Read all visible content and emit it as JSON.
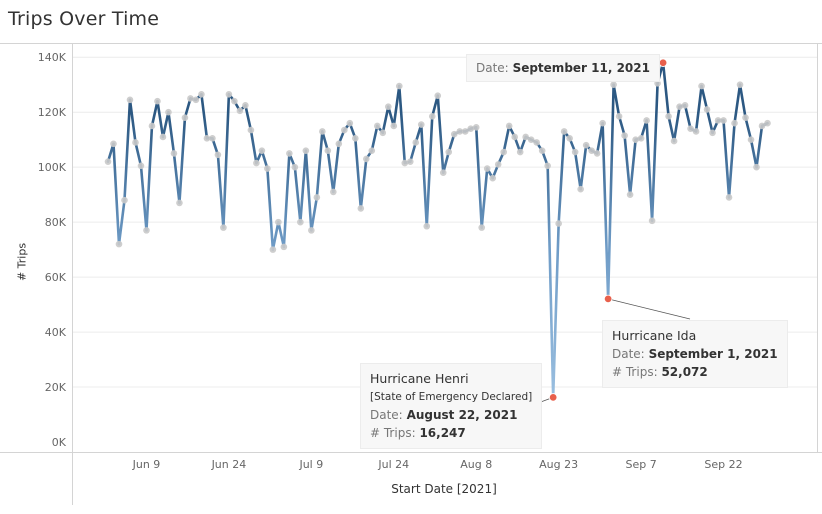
{
  "title": "Trips Over Time",
  "chart_data": {
    "type": "line",
    "xlabel": "Start Date [2021]",
    "ylabel": "# Trips",
    "x_start": "2021-06-02",
    "x_end": "2021-10-01",
    "x_ticks": [
      {
        "date": "2021-06-09",
        "label": "Jun 9"
      },
      {
        "date": "2021-06-24",
        "label": "Jun 24"
      },
      {
        "date": "2021-07-09",
        "label": "Jul 9"
      },
      {
        "date": "2021-07-24",
        "label": "Jul 24"
      },
      {
        "date": "2021-08-08",
        "label": "Aug 8"
      },
      {
        "date": "2021-08-23",
        "label": "Aug 23"
      },
      {
        "date": "2021-09-07",
        "label": "Sep 7"
      },
      {
        "date": "2021-09-22",
        "label": "Sep 22"
      }
    ],
    "ylim": [
      0,
      145000
    ],
    "y_ticks": [
      0,
      20000,
      40000,
      60000,
      80000,
      100000,
      120000,
      140000
    ],
    "y_tick_labels": [
      "0K",
      "20K",
      "40K",
      "60K",
      "80K",
      "100K",
      "120K",
      "140K"
    ],
    "grid": true,
    "series": [
      {
        "points": [
          [
            "2021-06-02",
            102000
          ],
          [
            "2021-06-03",
            108500
          ],
          [
            "2021-06-04",
            72000
          ],
          [
            "2021-06-05",
            88000
          ],
          [
            "2021-06-06",
            124500
          ],
          [
            "2021-06-07",
            109000
          ],
          [
            "2021-06-08",
            100500
          ],
          [
            "2021-06-09",
            77000
          ],
          [
            "2021-06-10",
            115000
          ],
          [
            "2021-06-11",
            124000
          ],
          [
            "2021-06-12",
            111000
          ],
          [
            "2021-06-13",
            120000
          ],
          [
            "2021-06-14",
            105000
          ],
          [
            "2021-06-15",
            87000
          ],
          [
            "2021-06-16",
            118000
          ],
          [
            "2021-06-17",
            125000
          ],
          [
            "2021-06-18",
            124500
          ],
          [
            "2021-06-19",
            126500
          ],
          [
            "2021-06-20",
            110500
          ],
          [
            "2021-06-21",
            110500
          ],
          [
            "2021-06-22",
            104500
          ],
          [
            "2021-06-23",
            78000
          ],
          [
            "2021-06-24",
            126500
          ],
          [
            "2021-06-25",
            124000
          ],
          [
            "2021-06-26",
            120500
          ],
          [
            "2021-06-27",
            122500
          ],
          [
            "2021-06-28",
            113500
          ],
          [
            "2021-06-29",
            101500
          ],
          [
            "2021-06-30",
            106000
          ],
          [
            "2021-07-01",
            99500
          ],
          [
            "2021-07-02",
            70000
          ],
          [
            "2021-07-03",
            80000
          ],
          [
            "2021-07-04",
            71000
          ],
          [
            "2021-07-05",
            105000
          ],
          [
            "2021-07-06",
            100000
          ],
          [
            "2021-07-07",
            80000
          ],
          [
            "2021-07-08",
            106000
          ],
          [
            "2021-07-09",
            77000
          ],
          [
            "2021-07-10",
            89000
          ],
          [
            "2021-07-11",
            113000
          ],
          [
            "2021-07-12",
            106000
          ],
          [
            "2021-07-13",
            91000
          ],
          [
            "2021-07-14",
            108500
          ],
          [
            "2021-07-15",
            113500
          ],
          [
            "2021-07-16",
            116000
          ],
          [
            "2021-07-17",
            110500
          ],
          [
            "2021-07-18",
            85000
          ],
          [
            "2021-07-19",
            103000
          ],
          [
            "2021-07-20",
            106000
          ],
          [
            "2021-07-21",
            115000
          ],
          [
            "2021-07-22",
            112500
          ],
          [
            "2021-07-23",
            122000
          ],
          [
            "2021-07-24",
            115000
          ],
          [
            "2021-07-25",
            129500
          ],
          [
            "2021-07-26",
            101500
          ],
          [
            "2021-07-27",
            102000
          ],
          [
            "2021-07-28",
            109000
          ],
          [
            "2021-07-29",
            115500
          ],
          [
            "2021-07-30",
            78500
          ],
          [
            "2021-07-31",
            118500
          ],
          [
            "2021-08-01",
            126000
          ],
          [
            "2021-08-02",
            98000
          ],
          [
            "2021-08-03",
            105500
          ],
          [
            "2021-08-04",
            112000
          ],
          [
            "2021-08-05",
            113000
          ],
          [
            "2021-08-06",
            113000
          ],
          [
            "2021-08-07",
            114000
          ],
          [
            "2021-08-08",
            114500
          ],
          [
            "2021-08-09",
            78000
          ],
          [
            "2021-08-10",
            99500
          ],
          [
            "2021-08-11",
            96000
          ],
          [
            "2021-08-12",
            101000
          ],
          [
            "2021-08-13",
            105500
          ],
          [
            "2021-08-14",
            115000
          ],
          [
            "2021-08-15",
            111000
          ],
          [
            "2021-08-16",
            105500
          ],
          [
            "2021-08-17",
            111000
          ],
          [
            "2021-08-18",
            110000
          ],
          [
            "2021-08-19",
            109000
          ],
          [
            "2021-08-20",
            106000
          ],
          [
            "2021-08-21",
            100500
          ],
          [
            "2021-08-22",
            16247
          ],
          [
            "2021-08-23",
            79500
          ],
          [
            "2021-08-24",
            113000
          ],
          [
            "2021-08-25",
            110500
          ],
          [
            "2021-08-26",
            105500
          ],
          [
            "2021-08-27",
            92000
          ],
          [
            "2021-08-28",
            108000
          ],
          [
            "2021-08-29",
            106000
          ],
          [
            "2021-08-30",
            105000
          ],
          [
            "2021-08-31",
            116000
          ],
          [
            "2021-09-01",
            52072
          ],
          [
            "2021-09-02",
            130000
          ],
          [
            "2021-09-03",
            118500
          ],
          [
            "2021-09-04",
            111500
          ],
          [
            "2021-09-05",
            90000
          ],
          [
            "2021-09-06",
            110000
          ],
          [
            "2021-09-07",
            110500
          ],
          [
            "2021-09-08",
            117000
          ],
          [
            "2021-09-09",
            80500
          ],
          [
            "2021-09-10",
            130500
          ],
          [
            "2021-09-11",
            138000
          ],
          [
            "2021-09-12",
            118500
          ],
          [
            "2021-09-13",
            109500
          ],
          [
            "2021-09-14",
            122000
          ],
          [
            "2021-09-15",
            122500
          ],
          [
            "2021-09-16",
            114000
          ],
          [
            "2021-09-17",
            113000
          ],
          [
            "2021-09-18",
            129500
          ],
          [
            "2021-09-19",
            121000
          ],
          [
            "2021-09-20",
            112500
          ],
          [
            "2021-09-21",
            117000
          ],
          [
            "2021-09-22",
            117000
          ],
          [
            "2021-09-23",
            89000
          ],
          [
            "2021-09-24",
            116000
          ],
          [
            "2021-09-25",
            130000
          ],
          [
            "2021-09-26",
            118000
          ],
          [
            "2021-09-27",
            110000
          ],
          [
            "2021-09-28",
            100000
          ],
          [
            "2021-09-29",
            115000
          ],
          [
            "2021-09-30",
            116000
          ]
        ]
      }
    ],
    "highlights": [
      "2021-08-22",
      "2021-09-01",
      "2021-09-11"
    ],
    "colors": {
      "line_dark": "#2c5882",
      "line_light": "#9fc3e3",
      "point": "#c9c9c9",
      "highlight": "#e8604c",
      "grid": "#ececec",
      "axis_text": "#666666"
    }
  },
  "annotations": {
    "henri": {
      "title": "Hurricane Henri",
      "subtitle": "[State of Emergency Declared]",
      "date_label": "Date:",
      "date_value": "August 22, 2021",
      "trips_label": "# Trips:",
      "trips_value": "16,247"
    },
    "ida": {
      "title": "Hurricane Ida",
      "date_label": "Date:",
      "date_value": "September 1, 2021",
      "trips_label": "# Trips:",
      "trips_value": "52,072"
    },
    "sep11": {
      "date_label": "Date:",
      "date_value": "September 11, 2021"
    }
  }
}
